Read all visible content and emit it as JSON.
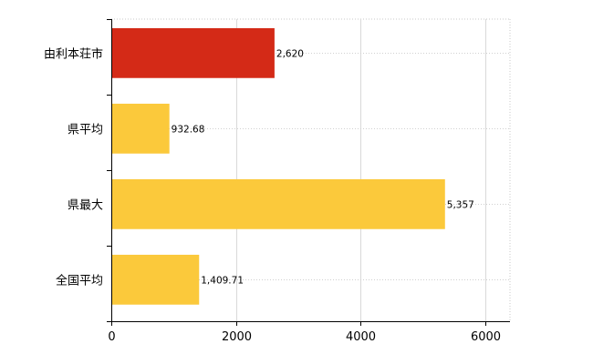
{
  "chart_data": {
    "type": "bar",
    "orientation": "horizontal",
    "categories": [
      "由利本荘市",
      "県平均",
      "県最大",
      "全国平均"
    ],
    "values": [
      2620,
      932.68,
      5357,
      1409.71
    ],
    "value_labels": [
      "2,620",
      "932.68",
      "5,357",
      "1,409.71"
    ],
    "colors": [
      "#d42a17",
      "#fbc93b",
      "#fbc93b",
      "#fbc93b"
    ],
    "xlim": [
      0,
      6400
    ],
    "x_ticks": [
      0,
      2000,
      4000,
      6000
    ],
    "x_tick_labels": [
      "0",
      "2000",
      "4000",
      "6000"
    ],
    "grid": "vertical, light gray",
    "legend": "none"
  }
}
